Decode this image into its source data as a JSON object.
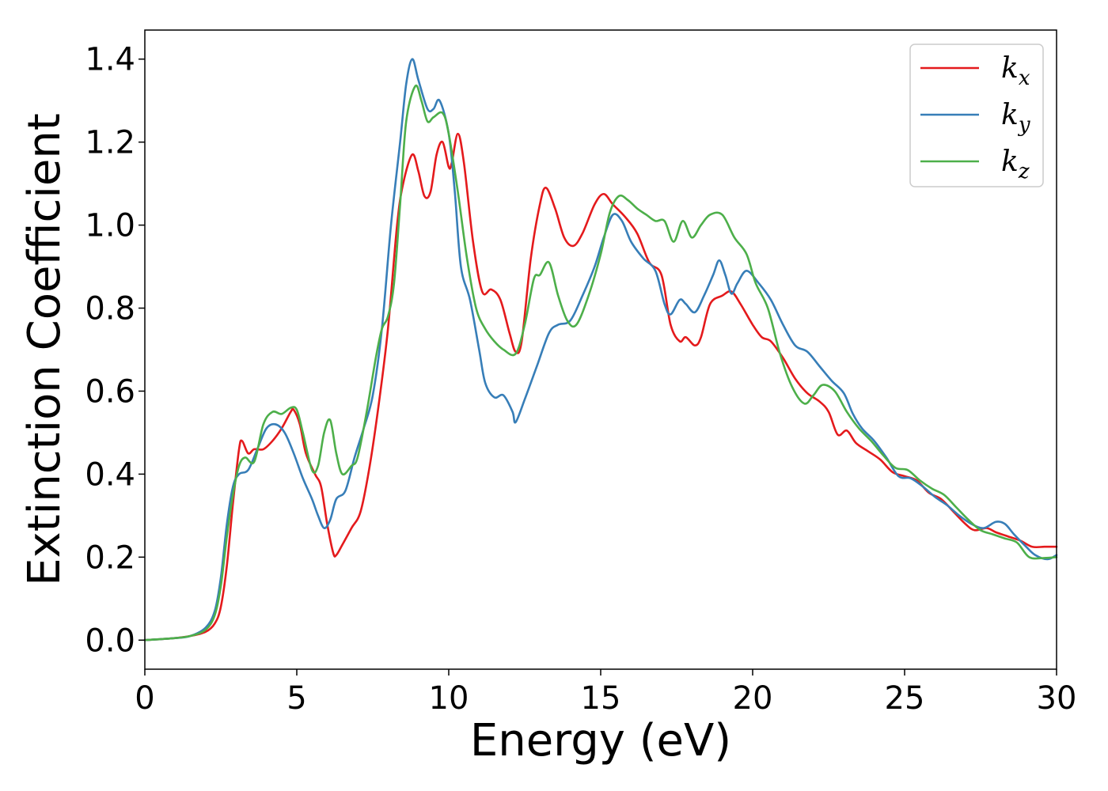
{
  "chart_data": {
    "type": "line",
    "title": "",
    "xlabel": "Energy (eV)",
    "ylabel": "Extinction Coefficient",
    "xlim": [
      0,
      30
    ],
    "ylim": [
      -0.07,
      1.47
    ],
    "xticks": [
      0,
      5,
      10,
      15,
      20,
      25,
      30
    ],
    "xtick_labels": [
      "0",
      "5",
      "10",
      "15",
      "20",
      "25",
      "30"
    ],
    "yticks": [
      0.0,
      0.2,
      0.4,
      0.6,
      0.8,
      1.0,
      1.2,
      1.4
    ],
    "ytick_labels": [
      "0.0",
      "0.2",
      "0.4",
      "0.6",
      "0.8",
      "1.0",
      "1.2",
      "1.4"
    ],
    "grid": false,
    "legend_position": "top-right",
    "series": [
      {
        "name": "k_x",
        "legend_base": "k",
        "legend_sub": "x",
        "color": "#e41a1c",
        "points": [
          [
            0,
            0
          ],
          [
            1,
            0.005
          ],
          [
            1.5,
            0.01
          ],
          [
            2,
            0.02
          ],
          [
            2.3,
            0.04
          ],
          [
            2.5,
            0.08
          ],
          [
            2.7,
            0.18
          ],
          [
            2.9,
            0.33
          ],
          [
            3.1,
            0.46
          ],
          [
            3.2,
            0.48
          ],
          [
            3.4,
            0.45
          ],
          [
            3.6,
            0.46
          ],
          [
            3.9,
            0.46
          ],
          [
            4.2,
            0.48
          ],
          [
            4.5,
            0.51
          ],
          [
            4.8,
            0.55
          ],
          [
            4.9,
            0.555
          ],
          [
            5.1,
            0.52
          ],
          [
            5.3,
            0.45
          ],
          [
            5.6,
            0.4
          ],
          [
            5.8,
            0.37
          ],
          [
            6.0,
            0.28
          ],
          [
            6.2,
            0.21
          ],
          [
            6.3,
            0.205
          ],
          [
            6.5,
            0.23
          ],
          [
            6.8,
            0.27
          ],
          [
            7.1,
            0.31
          ],
          [
            7.4,
            0.42
          ],
          [
            7.7,
            0.57
          ],
          [
            8.0,
            0.75
          ],
          [
            8.3,
            1.0
          ],
          [
            8.5,
            1.1
          ],
          [
            8.8,
            1.17
          ],
          [
            9.0,
            1.13
          ],
          [
            9.2,
            1.07
          ],
          [
            9.4,
            1.08
          ],
          [
            9.6,
            1.17
          ],
          [
            9.8,
            1.2
          ],
          [
            10.0,
            1.14
          ],
          [
            10.1,
            1.15
          ],
          [
            10.3,
            1.22
          ],
          [
            10.5,
            1.15
          ],
          [
            10.8,
            0.96
          ],
          [
            11.1,
            0.84
          ],
          [
            11.4,
            0.845
          ],
          [
            11.7,
            0.82
          ],
          [
            12.0,
            0.74
          ],
          [
            12.2,
            0.695
          ],
          [
            12.4,
            0.72
          ],
          [
            12.7,
            0.92
          ],
          [
            13.0,
            1.05
          ],
          [
            13.2,
            1.09
          ],
          [
            13.5,
            1.04
          ],
          [
            13.8,
            0.97
          ],
          [
            14.1,
            0.95
          ],
          [
            14.4,
            0.98
          ],
          [
            14.8,
            1.05
          ],
          [
            15.1,
            1.075
          ],
          [
            15.4,
            1.05
          ],
          [
            15.8,
            1.02
          ],
          [
            16.2,
            0.98
          ],
          [
            16.6,
            0.91
          ],
          [
            17.0,
            0.88
          ],
          [
            17.3,
            0.76
          ],
          [
            17.6,
            0.72
          ],
          [
            17.8,
            0.73
          ],
          [
            18.1,
            0.71
          ],
          [
            18.3,
            0.73
          ],
          [
            18.6,
            0.81
          ],
          [
            19.0,
            0.83
          ],
          [
            19.3,
            0.84
          ],
          [
            19.6,
            0.81
          ],
          [
            20.0,
            0.76
          ],
          [
            20.3,
            0.73
          ],
          [
            20.6,
            0.72
          ],
          [
            21.0,
            0.68
          ],
          [
            21.4,
            0.63
          ],
          [
            21.8,
            0.595
          ],
          [
            22.2,
            0.575
          ],
          [
            22.5,
            0.55
          ],
          [
            22.8,
            0.495
          ],
          [
            23.1,
            0.505
          ],
          [
            23.4,
            0.475
          ],
          [
            23.8,
            0.455
          ],
          [
            24.2,
            0.435
          ],
          [
            24.6,
            0.405
          ],
          [
            25.0,
            0.395
          ],
          [
            25.4,
            0.385
          ],
          [
            25.8,
            0.355
          ],
          [
            26.2,
            0.34
          ],
          [
            26.6,
            0.31
          ],
          [
            27.0,
            0.28
          ],
          [
            27.3,
            0.265
          ],
          [
            27.7,
            0.27
          ],
          [
            28.0,
            0.26
          ],
          [
            28.4,
            0.25
          ],
          [
            28.8,
            0.24
          ],
          [
            29.2,
            0.225
          ],
          [
            29.6,
            0.225
          ],
          [
            30,
            0.225
          ]
        ]
      },
      {
        "name": "k_y",
        "legend_base": "k",
        "legend_sub": "y",
        "color": "#377eb8",
        "points": [
          [
            0,
            0
          ],
          [
            1,
            0.005
          ],
          [
            1.5,
            0.01
          ],
          [
            2,
            0.03
          ],
          [
            2.3,
            0.07
          ],
          [
            2.5,
            0.15
          ],
          [
            2.7,
            0.28
          ],
          [
            2.9,
            0.37
          ],
          [
            3.1,
            0.4
          ],
          [
            3.4,
            0.41
          ],
          [
            3.7,
            0.46
          ],
          [
            4.0,
            0.51
          ],
          [
            4.3,
            0.52
          ],
          [
            4.6,
            0.5
          ],
          [
            4.9,
            0.45
          ],
          [
            5.2,
            0.39
          ],
          [
            5.5,
            0.34
          ],
          [
            5.7,
            0.3
          ],
          [
            5.9,
            0.27
          ],
          [
            6.1,
            0.29
          ],
          [
            6.3,
            0.34
          ],
          [
            6.6,
            0.36
          ],
          [
            6.9,
            0.44
          ],
          [
            7.2,
            0.51
          ],
          [
            7.5,
            0.59
          ],
          [
            7.8,
            0.75
          ],
          [
            8.1,
            1.0
          ],
          [
            8.4,
            1.2
          ],
          [
            8.6,
            1.34
          ],
          [
            8.8,
            1.4
          ],
          [
            9.0,
            1.35
          ],
          [
            9.3,
            1.28
          ],
          [
            9.5,
            1.28
          ],
          [
            9.7,
            1.3
          ],
          [
            10.0,
            1.22
          ],
          [
            10.2,
            1.08
          ],
          [
            10.4,
            0.9
          ],
          [
            10.7,
            0.82
          ],
          [
            11.0,
            0.7
          ],
          [
            11.2,
            0.62
          ],
          [
            11.5,
            0.585
          ],
          [
            11.8,
            0.59
          ],
          [
            12.1,
            0.55
          ],
          [
            12.2,
            0.525
          ],
          [
            12.5,
            0.58
          ],
          [
            12.9,
            0.66
          ],
          [
            13.3,
            0.74
          ],
          [
            13.6,
            0.76
          ],
          [
            14.0,
            0.77
          ],
          [
            14.4,
            0.83
          ],
          [
            14.8,
            0.9
          ],
          [
            15.1,
            0.97
          ],
          [
            15.4,
            1.025
          ],
          [
            15.7,
            1.01
          ],
          [
            16.0,
            0.96
          ],
          [
            16.4,
            0.92
          ],
          [
            16.8,
            0.89
          ],
          [
            17.1,
            0.81
          ],
          [
            17.3,
            0.785
          ],
          [
            17.6,
            0.82
          ],
          [
            17.8,
            0.81
          ],
          [
            18.1,
            0.79
          ],
          [
            18.4,
            0.83
          ],
          [
            18.7,
            0.88
          ],
          [
            18.9,
            0.915
          ],
          [
            19.1,
            0.88
          ],
          [
            19.3,
            0.835
          ],
          [
            19.5,
            0.86
          ],
          [
            19.8,
            0.89
          ],
          [
            20.2,
            0.86
          ],
          [
            20.6,
            0.82
          ],
          [
            21.0,
            0.76
          ],
          [
            21.4,
            0.71
          ],
          [
            21.8,
            0.695
          ],
          [
            22.2,
            0.66
          ],
          [
            22.6,
            0.625
          ],
          [
            23.0,
            0.595
          ],
          [
            23.3,
            0.545
          ],
          [
            23.6,
            0.51
          ],
          [
            24.0,
            0.48
          ],
          [
            24.4,
            0.44
          ],
          [
            24.8,
            0.395
          ],
          [
            25.2,
            0.39
          ],
          [
            25.6,
            0.37
          ],
          [
            26.0,
            0.345
          ],
          [
            26.4,
            0.325
          ],
          [
            26.8,
            0.3
          ],
          [
            27.2,
            0.28
          ],
          [
            27.6,
            0.27
          ],
          [
            28.0,
            0.285
          ],
          [
            28.3,
            0.28
          ],
          [
            28.6,
            0.255
          ],
          [
            29.0,
            0.225
          ],
          [
            29.3,
            0.205
          ],
          [
            29.7,
            0.195
          ],
          [
            30,
            0.205
          ]
        ]
      },
      {
        "name": "k_z",
        "legend_base": "k",
        "legend_sub": "z",
        "color": "#4daf4a",
        "points": [
          [
            0,
            0
          ],
          [
            1,
            0.005
          ],
          [
            1.5,
            0.01
          ],
          [
            2,
            0.025
          ],
          [
            2.3,
            0.06
          ],
          [
            2.5,
            0.13
          ],
          [
            2.7,
            0.25
          ],
          [
            2.9,
            0.35
          ],
          [
            3.1,
            0.42
          ],
          [
            3.3,
            0.44
          ],
          [
            3.6,
            0.43
          ],
          [
            3.9,
            0.52
          ],
          [
            4.2,
            0.55
          ],
          [
            4.5,
            0.545
          ],
          [
            4.8,
            0.56
          ],
          [
            5.0,
            0.555
          ],
          [
            5.2,
            0.5
          ],
          [
            5.5,
            0.41
          ],
          [
            5.7,
            0.42
          ],
          [
            5.9,
            0.5
          ],
          [
            6.1,
            0.53
          ],
          [
            6.3,
            0.45
          ],
          [
            6.5,
            0.4
          ],
          [
            6.8,
            0.42
          ],
          [
            7.0,
            0.44
          ],
          [
            7.3,
            0.55
          ],
          [
            7.6,
            0.68
          ],
          [
            7.8,
            0.75
          ],
          [
            8.0,
            0.78
          ],
          [
            8.2,
            0.86
          ],
          [
            8.4,
            1.05
          ],
          [
            8.6,
            1.25
          ],
          [
            8.9,
            1.335
          ],
          [
            9.1,
            1.3
          ],
          [
            9.3,
            1.25
          ],
          [
            9.5,
            1.26
          ],
          [
            9.8,
            1.27
          ],
          [
            10.0,
            1.22
          ],
          [
            10.3,
            1.08
          ],
          [
            10.6,
            0.92
          ],
          [
            10.9,
            0.8
          ],
          [
            11.2,
            0.75
          ],
          [
            11.5,
            0.72
          ],
          [
            11.8,
            0.7
          ],
          [
            12.2,
            0.69
          ],
          [
            12.5,
            0.76
          ],
          [
            12.8,
            0.87
          ],
          [
            13.0,
            0.88
          ],
          [
            13.3,
            0.91
          ],
          [
            13.6,
            0.83
          ],
          [
            13.9,
            0.77
          ],
          [
            14.2,
            0.76
          ],
          [
            14.6,
            0.83
          ],
          [
            15.0,
            0.93
          ],
          [
            15.3,
            1.03
          ],
          [
            15.6,
            1.07
          ],
          [
            15.9,
            1.06
          ],
          [
            16.2,
            1.04
          ],
          [
            16.5,
            1.025
          ],
          [
            16.8,
            1.01
          ],
          [
            17.1,
            1.01
          ],
          [
            17.4,
            0.96
          ],
          [
            17.7,
            1.01
          ],
          [
            18.0,
            0.97
          ],
          [
            18.3,
            1.0
          ],
          [
            18.6,
            1.025
          ],
          [
            19.0,
            1.025
          ],
          [
            19.4,
            0.97
          ],
          [
            19.8,
            0.93
          ],
          [
            20.1,
            0.86
          ],
          [
            20.5,
            0.8
          ],
          [
            20.9,
            0.69
          ],
          [
            21.3,
            0.61
          ],
          [
            21.7,
            0.57
          ],
          [
            22.0,
            0.59
          ],
          [
            22.3,
            0.615
          ],
          [
            22.7,
            0.6
          ],
          [
            23.1,
            0.55
          ],
          [
            23.5,
            0.51
          ],
          [
            23.9,
            0.48
          ],
          [
            24.3,
            0.445
          ],
          [
            24.7,
            0.415
          ],
          [
            25.1,
            0.41
          ],
          [
            25.5,
            0.385
          ],
          [
            25.9,
            0.365
          ],
          [
            26.3,
            0.35
          ],
          [
            26.7,
            0.32
          ],
          [
            27.1,
            0.29
          ],
          [
            27.5,
            0.265
          ],
          [
            27.9,
            0.255
          ],
          [
            28.3,
            0.245
          ],
          [
            28.7,
            0.235
          ],
          [
            29.1,
            0.2
          ],
          [
            29.6,
            0.198
          ],
          [
            30,
            0.2
          ]
        ]
      }
    ]
  }
}
